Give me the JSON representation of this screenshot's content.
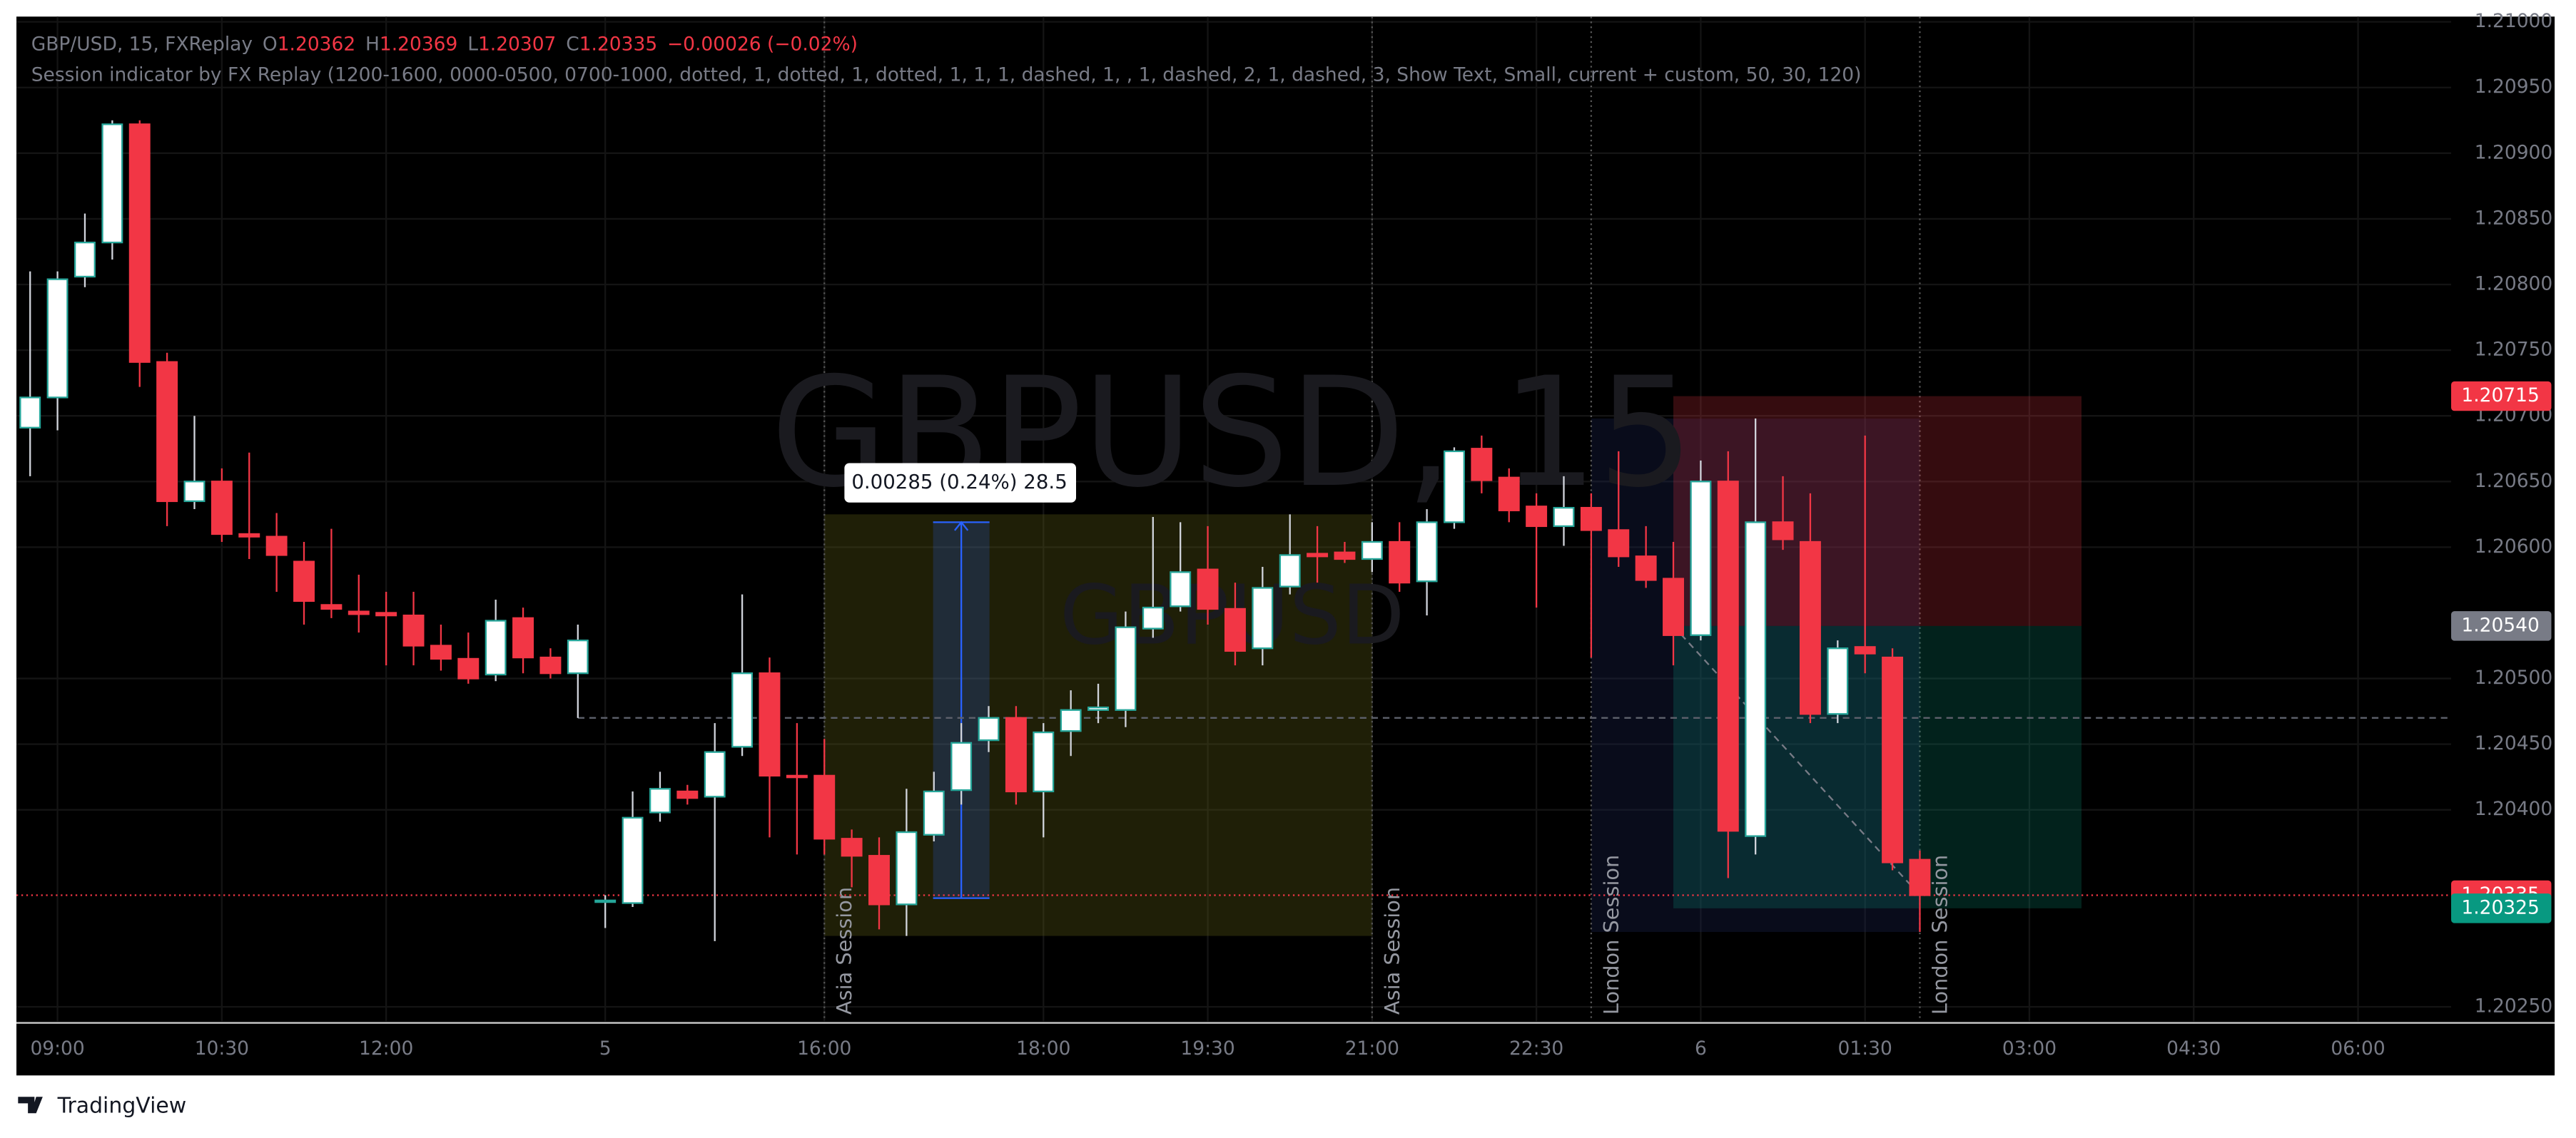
{
  "header": {
    "symbol": "GBP/USD, 15, FXReplay",
    "open_label": "O",
    "high_label": "H",
    "low_label": "L",
    "close_label": "C",
    "change": "−0.00026 (−0.02%)",
    "indicator": "Session indicator by FX Replay (1200-1600, 0000-0500, 0700-1000, dotted, 1, dotted, 1, dotted, 1, 1, 1, dashed, 1, , 1, dashed, 2, 1, dashed, 3, Show Text, Small, current + custom, 50, 30, 120)"
  },
  "watermark": {
    "title": "GBPUSD, 15",
    "subtitle": "GBPUSD"
  },
  "sessions": [
    "Asia Session",
    "Asia Session",
    "London Session",
    "London Session"
  ],
  "measure_label": "0.00285 (0.24%) 28.5",
  "footer": "TradingView",
  "chart_data": {
    "type": "candlestick",
    "up_color": "#ffffff",
    "up_border": "#26a69a",
    "down_color": "#f23645",
    "open": [
      1.20691,
      1.20714,
      1.20806,
      1.20832,
      1.20922,
      1.20741,
      1.20635,
      1.2065,
      1.2061,
      1.20608,
      1.20589,
      1.20556,
      1.20551,
      1.2055,
      1.20548,
      1.20525,
      1.20515,
      1.20503,
      1.20546,
      1.20516,
      1.20504,
      1.2033,
      1.20329,
      1.20398,
      1.20414,
      1.2041,
      1.20448,
      1.20504,
      1.20426,
      1.20426,
      1.20378,
      1.20365,
      1.20328,
      1.20381,
      1.20415,
      1.20453,
      1.2047,
      1.20414,
      1.2046,
      1.20476,
      1.20476,
      1.20538,
      1.20555,
      1.20583,
      1.20553,
      1.20523,
      1.2057,
      1.20595,
      1.20596,
      1.20591,
      1.20604,
      1.20574,
      1.20619,
      1.20675,
      1.20653,
      1.20631,
      1.20616,
      1.2063,
      1.20613,
      1.20593,
      1.20576,
      1.20533,
      1.2065,
      1.2038,
      1.20619,
      1.20604,
      1.20473,
      1.20524,
      1.20516,
      1.20362
    ],
    "high": [
      1.2081,
      1.2081,
      1.20854,
      1.20925,
      1.20925,
      1.20748,
      1.207,
      1.2066,
      1.20672,
      1.20626,
      1.20604,
      1.20614,
      1.20579,
      1.20566,
      1.20566,
      1.20541,
      1.20535,
      1.2056,
      1.20554,
      1.20523,
      1.20541,
      1.20335,
      1.20414,
      1.20429,
      1.20419,
      1.20466,
      1.20564,
      1.20516,
      1.20466,
      1.20454,
      1.20385,
      1.20379,
      1.20416,
      1.20429,
      1.20466,
      1.20479,
      1.20479,
      1.20466,
      1.20491,
      1.20496,
      1.20551,
      1.20623,
      1.20619,
      1.20616,
      1.20573,
      1.20585,
      1.20625,
      1.20616,
      1.20604,
      1.20619,
      1.20619,
      1.20629,
      1.20676,
      1.20685,
      1.2066,
      1.20641,
      1.20654,
      1.20641,
      1.20673,
      1.20616,
      1.20604,
      1.20666,
      1.20673,
      1.20698,
      1.20654,
      1.20641,
      1.20529,
      1.20685,
      1.20523,
      1.20369
    ],
    "low": [
      1.20654,
      1.20689,
      1.20798,
      1.20819,
      1.20722,
      1.20616,
      1.20629,
      1.20604,
      1.20591,
      1.20566,
      1.20541,
      1.20546,
      1.20535,
      1.2051,
      1.2051,
      1.20506,
      1.20496,
      1.20498,
      1.20504,
      1.205,
      1.2047,
      1.2031,
      1.20326,
      1.20391,
      1.20404,
      1.203,
      1.20441,
      1.20379,
      1.20366,
      1.20366,
      1.20341,
      1.20309,
      1.20304,
      1.20376,
      1.20404,
      1.20444,
      1.20404,
      1.20379,
      1.20441,
      1.20466,
      1.20463,
      1.20531,
      1.20551,
      1.20541,
      1.2051,
      1.2051,
      1.20564,
      1.20573,
      1.20588,
      1.20581,
      1.20566,
      1.20548,
      1.20614,
      1.20641,
      1.20619,
      1.20554,
      1.20601,
      1.20516,
      1.20585,
      1.20569,
      1.2051,
      1.20529,
      1.20348,
      1.20366,
      1.20598,
      1.20466,
      1.20466,
      1.20504,
      1.20354,
      1.20307
    ],
    "close": [
      1.20714,
      1.20804,
      1.20832,
      1.20922,
      1.20741,
      1.20635,
      1.2065,
      1.2061,
      1.20608,
      1.20594,
      1.20559,
      1.20553,
      1.20549,
      1.20548,
      1.20525,
      1.20515,
      1.205,
      1.20544,
      1.20516,
      1.20504,
      1.20529,
      1.20331,
      1.20394,
      1.20416,
      1.20409,
      1.20444,
      1.20504,
      1.20426,
      1.20425,
      1.20378,
      1.20365,
      1.20328,
      1.20383,
      1.20414,
      1.20451,
      1.2047,
      1.20414,
      1.20459,
      1.20476,
      1.20478,
      1.20539,
      1.20554,
      1.20581,
      1.20553,
      1.20521,
      1.20569,
      1.20594,
      1.20593,
      1.20591,
      1.20604,
      1.20573,
      1.20619,
      1.20673,
      1.20651,
      1.20628,
      1.20616,
      1.2063,
      1.20613,
      1.20593,
      1.20575,
      1.20533,
      1.2065,
      1.20384,
      1.20619,
      1.20606,
      1.20473,
      1.20523,
      1.20519,
      1.2036,
      1.20335
    ],
    "xlim": [
      -0.5,
      88.4
    ],
    "xticks": [
      {
        "value": 1,
        "label": "09:00"
      },
      {
        "value": 7,
        "label": "10:30"
      },
      {
        "value": 13,
        "label": "12:00"
      },
      {
        "value": 21,
        "label": "5"
      },
      {
        "value": 29,
        "label": "16:00"
      },
      {
        "value": 37,
        "label": "18:00"
      },
      {
        "value": 43,
        "label": "19:30"
      },
      {
        "value": 49,
        "label": "21:00"
      },
      {
        "value": 55,
        "label": "22:30"
      },
      {
        "value": 61,
        "label": "6"
      },
      {
        "value": 67,
        "label": "01:30"
      },
      {
        "value": 73,
        "label": "03:00"
      },
      {
        "value": 79,
        "label": "04:30"
      },
      {
        "value": 85,
        "label": "06:00"
      }
    ],
    "ylim": [
      1.20239,
      1.21004
    ],
    "yticks": [
      {
        "value": 1.21,
        "label": "1.21000"
      },
      {
        "value": 1.2095,
        "label": "1.20950"
      },
      {
        "value": 1.209,
        "label": "1.20900"
      },
      {
        "value": 1.2085,
        "label": "1.20850"
      },
      {
        "value": 1.208,
        "label": "1.20800"
      },
      {
        "value": 1.2075,
        "label": "1.20750"
      },
      {
        "value": 1.207,
        "label": "1.20700"
      },
      {
        "value": 1.2065,
        "label": "1.20650"
      },
      {
        "value": 1.206,
        "label": "1.20600"
      },
      {
        "value": 1.205,
        "label": "1.20500"
      },
      {
        "value": 1.2045,
        "label": "1.20450"
      },
      {
        "value": 1.204,
        "label": "1.20400"
      },
      {
        "value": 1.2025,
        "label": "1.20250"
      }
    ],
    "price_labels": [
      {
        "value": 1.20715,
        "color": "#f23645"
      },
      {
        "value": 1.2054,
        "label": "1.20540",
        "color": "#787b86"
      },
      {
        "value": 1.20335,
        "color": "#f23645"
      },
      {
        "value": 1.20325,
        "color": "#089981"
      }
    ],
    "grid": true
  }
}
